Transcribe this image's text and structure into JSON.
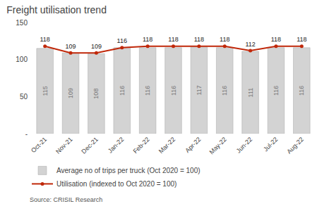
{
  "chart_data": {
    "type": "bar",
    "title": "Freight utilisation trend",
    "categories": [
      "Oct-21",
      "Nov-21",
      "Dec-21",
      "Jan-22",
      "Feb-22",
      "Mar-22",
      "Apr-22",
      "May-22",
      "Jun-22",
      "Jul-22",
      "Aug-22"
    ],
    "series": [
      {
        "name": "Average no of trips per truck (Oct 2020 = 100)",
        "type": "bar",
        "color": "#d3d3d3",
        "values": [
          115,
          109,
          108,
          116,
          116,
          116,
          117,
          116,
          111,
          116,
          116
        ]
      },
      {
        "name": "Utilisation (indexed to Oct 2020 = 100)",
        "type": "line",
        "color": "#c0280a",
        "marker": "circle",
        "values": [
          118,
          109,
          109,
          116,
          118,
          118,
          118,
          118,
          112,
          118,
          118
        ]
      }
    ],
    "ylim": [
      0,
      150
    ],
    "yticks": [
      {
        "value": 0,
        "label": "-"
      },
      50,
      100,
      150
    ],
    "grid": false,
    "data_labels": true,
    "legend": "bottom",
    "annotations": [
      "Source: CRISIL Research"
    ]
  }
}
